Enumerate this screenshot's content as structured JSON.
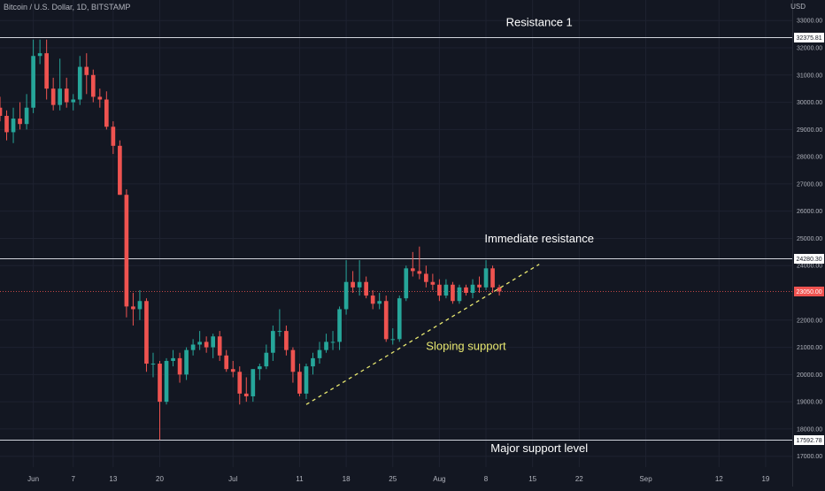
{
  "symbol": "Bitcoin / U.S. Dollar, 1D, BITSTAMP",
  "currency": "USD",
  "colors": {
    "background": "#131722",
    "grid": "#1e2230",
    "bull": "#26a69a",
    "bear": "#ef5350",
    "level_line": "#d1d4dc",
    "current_price_line": "#ef5350",
    "trendline": "#e8e870"
  },
  "chart_data": {
    "type": "candlestick",
    "ylim": [
      16600,
      33300
    ],
    "y_ticks": [
      "33000.00",
      "32000.00",
      "31000.00",
      "30000.00",
      "29000.00",
      "28000.00",
      "27000.00",
      "26000.00",
      "25000.00",
      "24000.00",
      "22000.00",
      "21000.00",
      "20000.00",
      "19000.00",
      "18000.00",
      "17000.00"
    ],
    "x_ticks": [
      {
        "label": "Jun",
        "day": 0
      },
      {
        "label": "7",
        "day": 6
      },
      {
        "label": "13",
        "day": 12
      },
      {
        "label": "20",
        "day": 19
      },
      {
        "label": "Jul",
        "day": 30
      },
      {
        "label": "11",
        "day": 40
      },
      {
        "label": "18",
        "day": 47
      },
      {
        "label": "25",
        "day": 54
      },
      {
        "label": "Aug",
        "day": 61
      },
      {
        "label": "8",
        "day": 68
      },
      {
        "label": "15",
        "day": 75
      },
      {
        "label": "22",
        "day": 82
      },
      {
        "label": "Sep",
        "day": 92
      },
      {
        "label": "12",
        "day": 103
      },
      {
        "label": "19",
        "day": 110
      }
    ],
    "day_range": [
      -5,
      114
    ],
    "candles": [
      {
        "d": -5,
        "o": 29800,
        "h": 30200,
        "l": 29300,
        "c": 29500
      },
      {
        "d": -4,
        "o": 29500,
        "h": 29700,
        "l": 28600,
        "c": 28900
      },
      {
        "d": -3,
        "o": 28900,
        "h": 29800,
        "l": 28500,
        "c": 29400
      },
      {
        "d": -2,
        "o": 29400,
        "h": 30000,
        "l": 29000,
        "c": 29200
      },
      {
        "d": -1,
        "o": 29200,
        "h": 30300,
        "l": 29000,
        "c": 29800
      },
      {
        "d": 0,
        "o": 29800,
        "h": 32300,
        "l": 29600,
        "c": 31700
      },
      {
        "d": 1,
        "o": 31700,
        "h": 32300,
        "l": 31400,
        "c": 31800
      },
      {
        "d": 2,
        "o": 31800,
        "h": 32300,
        "l": 30100,
        "c": 30500
      },
      {
        "d": 3,
        "o": 30500,
        "h": 30900,
        "l": 29700,
        "c": 29900
      },
      {
        "d": 4,
        "o": 29900,
        "h": 31600,
        "l": 29700,
        "c": 30500
      },
      {
        "d": 5,
        "o": 30500,
        "h": 30900,
        "l": 29800,
        "c": 30000
      },
      {
        "d": 6,
        "o": 30000,
        "h": 30300,
        "l": 29700,
        "c": 30100
      },
      {
        "d": 7,
        "o": 30100,
        "h": 31700,
        "l": 29900,
        "c": 31300
      },
      {
        "d": 8,
        "o": 31300,
        "h": 31800,
        "l": 30300,
        "c": 31000
      },
      {
        "d": 9,
        "o": 31000,
        "h": 31200,
        "l": 30000,
        "c": 30200
      },
      {
        "d": 10,
        "o": 30200,
        "h": 30500,
        "l": 29800,
        "c": 30100
      },
      {
        "d": 11,
        "o": 30100,
        "h": 30400,
        "l": 29000,
        "c": 29100
      },
      {
        "d": 12,
        "o": 29100,
        "h": 29300,
        "l": 28100,
        "c": 28400
      },
      {
        "d": 13,
        "o": 28400,
        "h": 28600,
        "l": 26600,
        "c": 26600
      },
      {
        "d": 14,
        "o": 26600,
        "h": 26800,
        "l": 22100,
        "c": 22500
      },
      {
        "d": 15,
        "o": 22500,
        "h": 23000,
        "l": 21800,
        "c": 22400
      },
      {
        "d": 16,
        "o": 22400,
        "h": 23100,
        "l": 22000,
        "c": 22700
      },
      {
        "d": 17,
        "o": 22700,
        "h": 22800,
        "l": 20100,
        "c": 20400
      },
      {
        "d": 18,
        "o": 20400,
        "h": 20800,
        "l": 19900,
        "c": 20400
      },
      {
        "d": 19,
        "o": 20400,
        "h": 20500,
        "l": 17600,
        "c": 19000
      },
      {
        "d": 20,
        "o": 19000,
        "h": 20600,
        "l": 18900,
        "c": 20500
      },
      {
        "d": 21,
        "o": 20500,
        "h": 20900,
        "l": 20300,
        "c": 20600
      },
      {
        "d": 22,
        "o": 20600,
        "h": 20800,
        "l": 19700,
        "c": 20000
      },
      {
        "d": 23,
        "o": 20000,
        "h": 21000,
        "l": 19800,
        "c": 20900
      },
      {
        "d": 24,
        "o": 20900,
        "h": 21300,
        "l": 20700,
        "c": 21100
      },
      {
        "d": 25,
        "o": 21100,
        "h": 21600,
        "l": 20900,
        "c": 21200
      },
      {
        "d": 26,
        "o": 21200,
        "h": 21400,
        "l": 20800,
        "c": 21000
      },
      {
        "d": 27,
        "o": 21000,
        "h": 21500,
        "l": 20600,
        "c": 21400
      },
      {
        "d": 28,
        "o": 21400,
        "h": 21600,
        "l": 20500,
        "c": 20700
      },
      {
        "d": 29,
        "o": 20700,
        "h": 20900,
        "l": 20100,
        "c": 20200
      },
      {
        "d": 30,
        "o": 20200,
        "h": 20500,
        "l": 19900,
        "c": 20100
      },
      {
        "d": 31,
        "o": 20100,
        "h": 20300,
        "l": 18900,
        "c": 19300
      },
      {
        "d": 32,
        "o": 19300,
        "h": 19900,
        "l": 19000,
        "c": 19200
      },
      {
        "d": 33,
        "o": 19200,
        "h": 20100,
        "l": 19000,
        "c": 20200
      },
      {
        "d": 34,
        "o": 20200,
        "h": 20400,
        "l": 19800,
        "c": 20300
      },
      {
        "d": 35,
        "o": 20300,
        "h": 21100,
        "l": 20200,
        "c": 20800
      },
      {
        "d": 36,
        "o": 20800,
        "h": 21800,
        "l": 20500,
        "c": 21600
      },
      {
        "d": 37,
        "o": 21600,
        "h": 22400,
        "l": 21400,
        "c": 21600
      },
      {
        "d": 38,
        "o": 21600,
        "h": 21800,
        "l": 20700,
        "c": 20900
      },
      {
        "d": 39,
        "o": 20900,
        "h": 21000,
        "l": 19700,
        "c": 20100
      },
      {
        "d": 40,
        "o": 20100,
        "h": 20400,
        "l": 19200,
        "c": 19300
      },
      {
        "d": 41,
        "o": 19300,
        "h": 20400,
        "l": 19100,
        "c": 20300
      },
      {
        "d": 42,
        "o": 20300,
        "h": 20800,
        "l": 20000,
        "c": 20600
      },
      {
        "d": 43,
        "o": 20600,
        "h": 21200,
        "l": 20400,
        "c": 20900
      },
      {
        "d": 44,
        "o": 20900,
        "h": 21500,
        "l": 20800,
        "c": 21200
      },
      {
        "d": 45,
        "o": 21200,
        "h": 21600,
        "l": 20900,
        "c": 21200
      },
      {
        "d": 46,
        "o": 21200,
        "h": 22500,
        "l": 20900,
        "c": 22400
      },
      {
        "d": 47,
        "o": 22400,
        "h": 24200,
        "l": 22200,
        "c": 23400
      },
      {
        "d": 48,
        "o": 23400,
        "h": 23800,
        "l": 23000,
        "c": 23200
      },
      {
        "d": 49,
        "o": 23200,
        "h": 24200,
        "l": 22900,
        "c": 23400
      },
      {
        "d": 50,
        "o": 23400,
        "h": 23600,
        "l": 22800,
        "c": 22900
      },
      {
        "d": 51,
        "o": 22900,
        "h": 23100,
        "l": 22400,
        "c": 22600
      },
      {
        "d": 52,
        "o": 22600,
        "h": 23000,
        "l": 22400,
        "c": 22700
      },
      {
        "d": 53,
        "o": 22700,
        "h": 22900,
        "l": 21200,
        "c": 21300
      },
      {
        "d": 54,
        "o": 21300,
        "h": 21700,
        "l": 21100,
        "c": 21300
      },
      {
        "d": 55,
        "o": 21300,
        "h": 22900,
        "l": 21200,
        "c": 22800
      },
      {
        "d": 56,
        "o": 22800,
        "h": 24000,
        "l": 22700,
        "c": 23900
      },
      {
        "d": 57,
        "o": 23900,
        "h": 24500,
        "l": 23600,
        "c": 23800
      },
      {
        "d": 58,
        "o": 23800,
        "h": 24700,
        "l": 23500,
        "c": 23700
      },
      {
        "d": 59,
        "o": 23700,
        "h": 24000,
        "l": 23200,
        "c": 23400
      },
      {
        "d": 60,
        "o": 23400,
        "h": 23700,
        "l": 23100,
        "c": 23300
      },
      {
        "d": 61,
        "o": 23300,
        "h": 23500,
        "l": 22700,
        "c": 22900
      },
      {
        "d": 62,
        "o": 22900,
        "h": 23500,
        "l": 22800,
        "c": 23300
      },
      {
        "d": 63,
        "o": 23300,
        "h": 23400,
        "l": 22600,
        "c": 22700
      },
      {
        "d": 64,
        "o": 22700,
        "h": 23300,
        "l": 22600,
        "c": 23200
      },
      {
        "d": 65,
        "o": 23200,
        "h": 23300,
        "l": 22900,
        "c": 23000
      },
      {
        "d": 66,
        "o": 23000,
        "h": 23500,
        "l": 22800,
        "c": 23300
      },
      {
        "d": 67,
        "o": 23300,
        "h": 23600,
        "l": 23000,
        "c": 23200
      },
      {
        "d": 68,
        "o": 23200,
        "h": 24200,
        "l": 23100,
        "c": 23900
      },
      {
        "d": 69,
        "o": 23900,
        "h": 24000,
        "l": 23000,
        "c": 23200
      },
      {
        "d": 70,
        "o": 23200,
        "h": 23300,
        "l": 22900,
        "c": 23050
      }
    ],
    "levels": [
      {
        "name": "Resistance 1",
        "value": 32375.81,
        "label": "32375.81"
      },
      {
        "name": "Immediate resistance",
        "value": 24280.3,
        "label": "24280.30"
      },
      {
        "name": "Major support level",
        "value": 17592.78,
        "label": "17592.78"
      }
    ],
    "current_price": {
      "value": 23050.0,
      "label": "23050.00"
    },
    "trendline": {
      "name": "Sloping support",
      "from": {
        "day": 41,
        "price": 18900
      },
      "to": {
        "day": 76,
        "price": 24050
      }
    },
    "annotations": [
      {
        "text": "Resistance 1",
        "day": 76,
        "price": 32800
      },
      {
        "text": "Immediate resistance",
        "day": 76,
        "price": 24850
      },
      {
        "text": "Sloping support",
        "day": 65,
        "price": 20900
      },
      {
        "text": "Major support level",
        "day": 76,
        "price": 17150
      }
    ]
  }
}
